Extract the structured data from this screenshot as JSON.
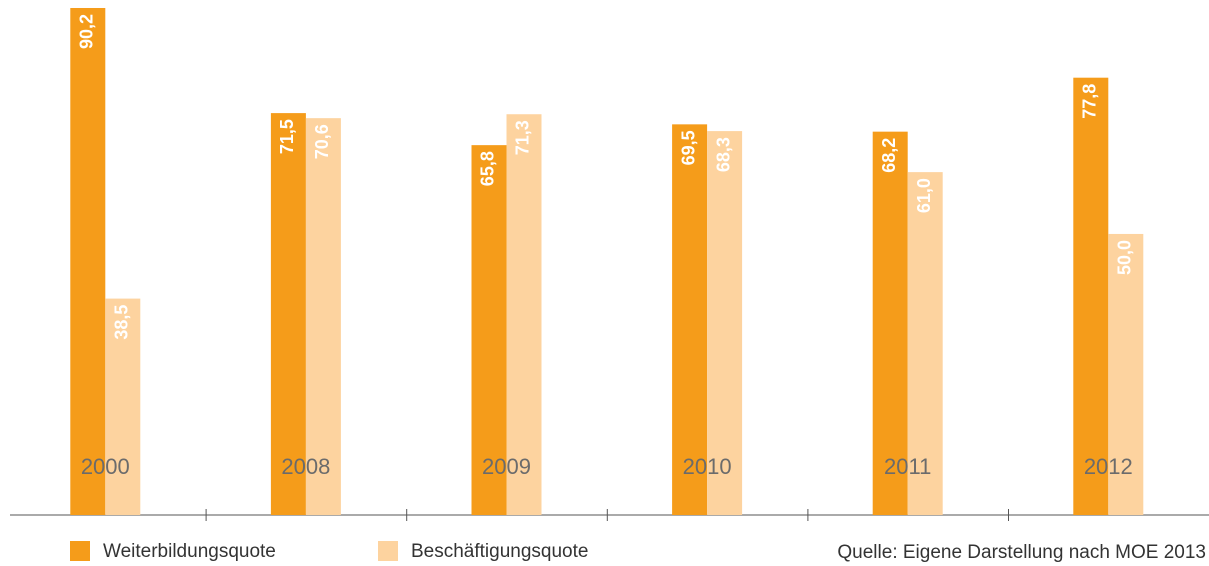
{
  "chart_data": {
    "type": "bar",
    "categories": [
      "2000",
      "2008",
      "2009",
      "2010",
      "2011",
      "2012"
    ],
    "series": [
      {
        "name": "Weiterbildungsquote",
        "color": "#f59c1a",
        "values": [
          90.2,
          71.5,
          65.8,
          69.5,
          68.2,
          77.8
        ],
        "value_labels": [
          "90,2",
          "71,5",
          "65,8",
          "69,5",
          "68,2",
          "77,8"
        ]
      },
      {
        "name": "Beschäftigungsquote",
        "color": "#fdd39f",
        "values": [
          38.5,
          70.6,
          71.3,
          68.3,
          61.0,
          50.0
        ],
        "value_labels": [
          "38,5",
          "70,6",
          "71,3",
          "68,3",
          "61,0",
          "50,0"
        ]
      }
    ],
    "ylim": [
      0,
      91
    ],
    "source": "Quelle: Eigene Darstellung nach MOE 2013"
  }
}
